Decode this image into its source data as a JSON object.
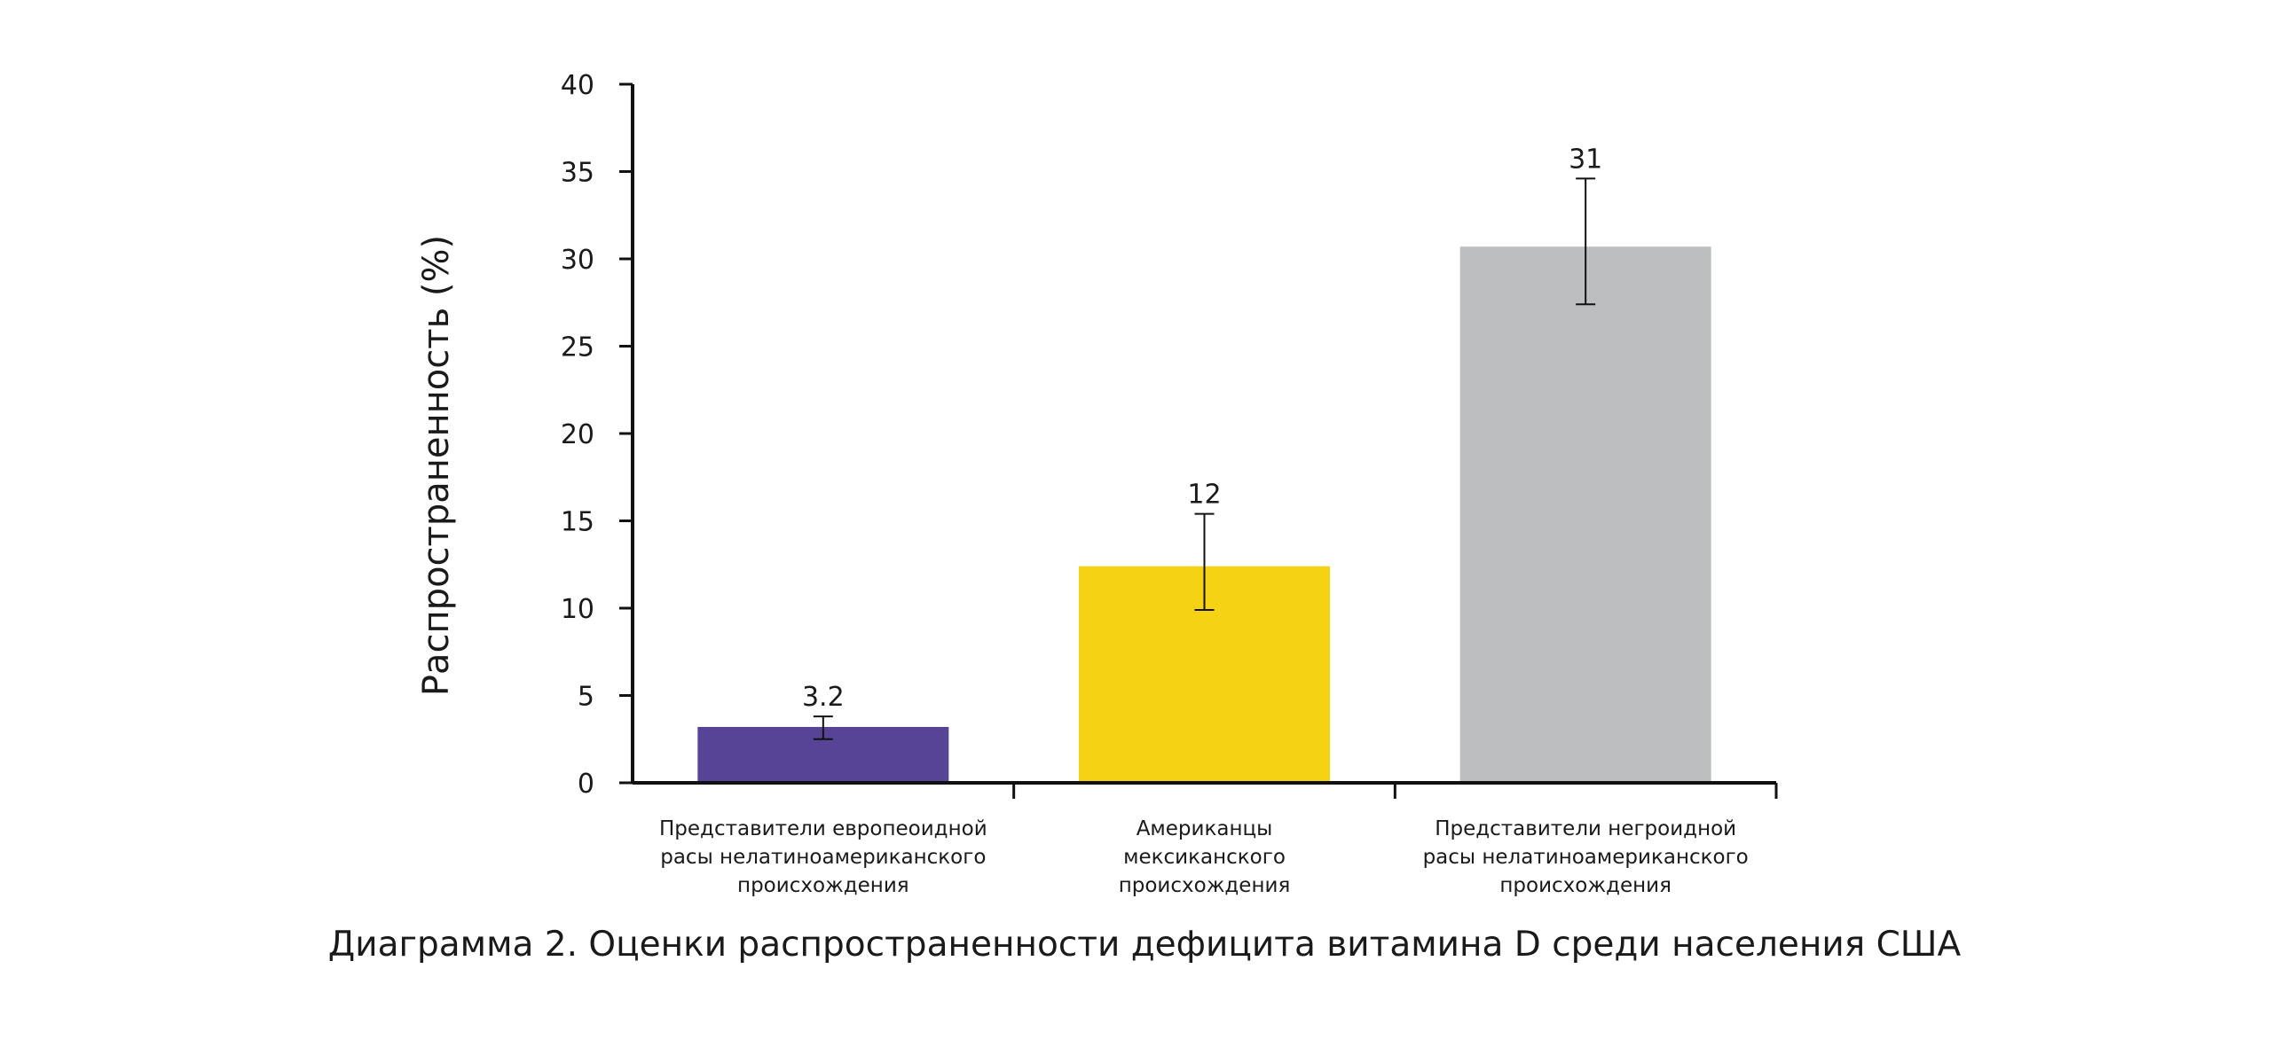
{
  "chart_data": {
    "type": "bar",
    "title": "Диаграмма 2. Оценки распространенности дефицита витамина D среди населения США",
    "xlabel": "",
    "ylabel": "Распространенность (%)",
    "ylim": [
      0,
      40
    ],
    "yticks": [
      "0",
      "5",
      "10",
      "15",
      "20",
      "25",
      "30",
      "35",
      "40"
    ],
    "categories": [
      [
        "Представители европеоидной",
        "расы нелатиноамериканского",
        "происхождения"
      ],
      [
        "Американцы",
        "мексиканского",
        "происхождения"
      ],
      [
        "Представители негроидной",
        "расы нелатиноамериканского",
        "происхождения"
      ]
    ],
    "values": [
      3.2,
      12.4,
      30.7
    ],
    "value_labels": [
      "3.2",
      "12",
      "31"
    ],
    "error_low": [
      2.5,
      9.9,
      27.4
    ],
    "error_high": [
      3.8,
      15.4,
      34.6
    ],
    "colors": [
      "#574497",
      "#f6d215",
      "#bdbec0"
    ],
    "grid": false,
    "legend": "none"
  }
}
